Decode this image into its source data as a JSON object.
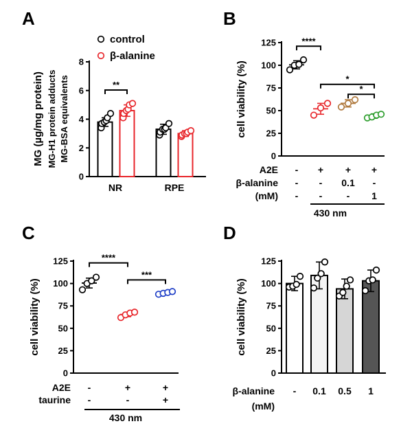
{
  "chart_data": [
    {
      "panel": "A",
      "type": "bar",
      "ylabel_lines": [
        "MG (µg/mg protein)",
        "MG-H1 protein adducts",
        "MG-BSA equivalents"
      ],
      "ylim": [
        0,
        8
      ],
      "yticks": [
        0,
        2,
        4,
        6,
        8
      ],
      "categories": [
        "NR",
        "RPE"
      ],
      "legend": "top",
      "series": [
        {
          "name": "control",
          "color": "#000000",
          "values": [
            3.8,
            3.3
          ],
          "errors": [
            0.3,
            0.35
          ],
          "points": [
            [
              3.4,
              3.7,
              3.8,
              3.9,
              4.1,
              4.4
            ],
            [
              2.9,
              3.1,
              3.3,
              3.3,
              3.4,
              3.7
            ]
          ]
        },
        {
          "name": "β-alanine",
          "color": "#e8262b",
          "values": [
            4.6,
            3.0
          ],
          "errors": [
            0.4,
            0.2
          ],
          "points": [
            [
              4.1,
              4.4,
              4.6,
              4.7,
              5.0,
              5.1
            ],
            [
              2.8,
              2.9,
              3.0,
              3.0,
              3.1,
              3.2
            ]
          ]
        }
      ],
      "annotations": [
        {
          "text": "**",
          "between": "NR control vs NR β-alanine"
        }
      ]
    },
    {
      "panel": "B",
      "type": "scatter",
      "ylabel": "cell viability (%)",
      "ylim": [
        0,
        125
      ],
      "yticks": [
        0,
        25,
        50,
        75,
        100,
        125
      ],
      "groups": [
        {
          "color": "#000000",
          "points": [
            95,
            100,
            101,
            106
          ],
          "mean": 100.5,
          "sd": 4.5
        },
        {
          "color": "#e8262b",
          "points": [
            45,
            53,
            58
          ],
          "mean": 52,
          "sd": 6
        },
        {
          "color": "#b07a3e",
          "points": [
            54,
            58,
            62
          ],
          "mean": 58,
          "sd": 4
        },
        {
          "color": "#2e9e2e",
          "points": [
            42,
            43,
            45,
            46
          ],
          "mean": 44,
          "sd": 2.5
        }
      ],
      "conditions": [
        {
          "label": "A2E",
          "values": [
            "-",
            "+",
            "+",
            "+"
          ]
        },
        {
          "label": "β-alanine",
          "values": [
            "-",
            "-",
            "0.1",
            "-"
          ]
        },
        {
          "label": "(mM)",
          "values": [
            "-",
            "-",
            "-",
            "1"
          ]
        }
      ],
      "footer": "430 nm",
      "annotations": [
        "****",
        "*",
        "*"
      ]
    },
    {
      "panel": "C",
      "type": "scatter",
      "ylabel": "cell viability (%)",
      "ylim": [
        0,
        125
      ],
      "yticks": [
        0,
        25,
        50,
        75,
        100,
        125
      ],
      "groups": [
        {
          "color": "#000000",
          "points": [
            93,
            100,
            103,
            107
          ],
          "mean": 100.5,
          "sd": 5.5
        },
        {
          "color": "#e8262b",
          "points": [
            62,
            65,
            67,
            68
          ],
          "mean": 65.5,
          "sd": 2.5
        },
        {
          "color": "#1f3fc7",
          "points": [
            88,
            89,
            90,
            91
          ],
          "mean": 89.5,
          "sd": 1.3
        }
      ],
      "conditions": [
        {
          "label": "A2E",
          "values": [
            "-",
            "+",
            "+"
          ]
        },
        {
          "label": "taurine",
          "values": [
            "-",
            "-",
            "+"
          ]
        }
      ],
      "footer": "430 nm",
      "annotations": [
        "****",
        "***"
      ]
    },
    {
      "panel": "D",
      "type": "bar",
      "ylabel": "cell viability (%)",
      "ylim": [
        0,
        125
      ],
      "yticks": [
        0,
        25,
        50,
        75,
        100,
        125
      ],
      "categories": [
        "-",
        "0.1",
        "0.5",
        "1"
      ],
      "xlabel_lines": [
        "β-alanine",
        "(mM)"
      ],
      "values": [
        100,
        109,
        94,
        103
      ],
      "errors": [
        8,
        15,
        11,
        12
      ],
      "points": [
        [
          96,
          97,
          99,
          108
        ],
        [
          95,
          106,
          111,
          124
        ],
        [
          86,
          90,
          97,
          104
        ],
        [
          92,
          103,
          104,
          115
        ]
      ],
      "fills": [
        "#ffffff",
        "#f4f4f4",
        "#d6d6d6",
        "#555555"
      ]
    }
  ]
}
